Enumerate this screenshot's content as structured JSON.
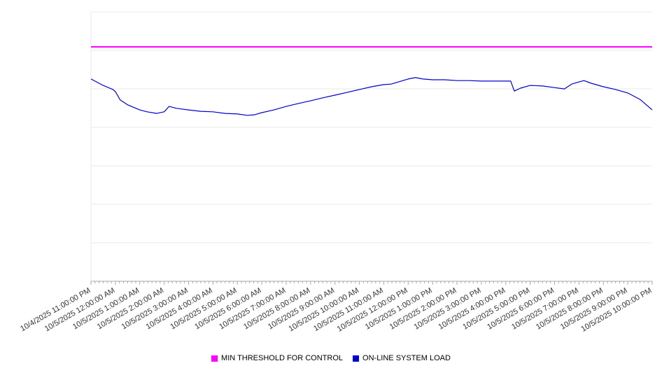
{
  "chart_data": {
    "type": "line",
    "title": "",
    "xlabel": "",
    "ylabel": "",
    "grid": true,
    "h_gridline_count": 8,
    "legend_position": "bottom",
    "ylim": [
      0,
      100
    ],
    "y_axis_labels": [],
    "x_axis": {
      "labels": [
        "10/4/2025 11:00:00 PM",
        "10/5/2025 12:00:00 AM",
        "10/5/2025 1:00:00 AM",
        "10/5/2025 2:00:00 AM",
        "10/5/2025 3:00:00 AM",
        "10/5/2025 4:00:00 AM",
        "10/5/2025 5:00:00 AM",
        "10/5/2025 6:00:00 AM",
        "10/5/2025 7:00:00 AM",
        "10/5/2025 8:00:00 AM",
        "10/5/2025 9:00:00 AM",
        "10/5/2025 10:00:00 AM",
        "10/5/2025 11:00:00 AM",
        "10/5/2025 12:00:00 PM",
        "10/5/2025 1:00:00 PM",
        "10/5/2025 2:00:00 PM",
        "10/5/2025 3:00:00 PM",
        "10/5/2025 4:00:00 PM",
        "10/5/2025 5:00:00 PM",
        "10/5/2025 6:00:00 PM",
        "10/5/2025 7:00:00 PM",
        "10/5/2025 8:00:00 PM",
        "10/5/2025 9:00:00 PM",
        "10/5/2025 10:00:00 PM"
      ],
      "minor_ticks_per_hour": 6,
      "label_rotation_deg": -30
    },
    "series": [
      {
        "name": "MIN THRESHOLD FOR CONTROL",
        "color": "#ff00ff",
        "style": "horizontal-line",
        "value": 87
      },
      {
        "name": "ON-LINE SYSTEM LOAD",
        "color": "#0000cd",
        "style": "line",
        "points": [
          [
            0,
            75.1
          ],
          [
            0.5,
            72.7
          ],
          [
            0.9,
            71.2
          ],
          [
            1,
            70.4
          ],
          [
            1.2,
            67.3
          ],
          [
            1.5,
            65.5
          ],
          [
            2,
            63.6
          ],
          [
            2.3,
            62.9
          ],
          [
            2.7,
            62.3
          ],
          [
            3,
            62.9
          ],
          [
            3.2,
            64.9
          ],
          [
            3.5,
            64.2
          ],
          [
            4,
            63.6
          ],
          [
            4.5,
            63.1
          ],
          [
            5,
            62.9
          ],
          [
            5.5,
            62.3
          ],
          [
            6,
            62.1
          ],
          [
            6.4,
            61.6
          ],
          [
            6.7,
            61.8
          ],
          [
            7,
            62.6
          ],
          [
            7.5,
            63.6
          ],
          [
            8,
            64.9
          ],
          [
            8.5,
            66.0
          ],
          [
            9,
            67.0
          ],
          [
            9.5,
            68.1
          ],
          [
            10,
            69.1
          ],
          [
            10.5,
            70.1
          ],
          [
            11,
            71.2
          ],
          [
            11.5,
            72.2
          ],
          [
            12,
            73.0
          ],
          [
            12.3,
            73.2
          ],
          [
            12.6,
            74.0
          ],
          [
            13,
            75.1
          ],
          [
            13.3,
            75.6
          ],
          [
            13.6,
            75.1
          ],
          [
            14,
            74.8
          ],
          [
            14.5,
            74.8
          ],
          [
            15,
            74.5
          ],
          [
            15.5,
            74.5
          ],
          [
            16,
            74.3
          ],
          [
            16.5,
            74.3
          ],
          [
            17,
            74.3
          ],
          [
            17.2,
            74.3
          ],
          [
            17.35,
            70.6
          ],
          [
            17.6,
            71.7
          ],
          [
            18,
            72.7
          ],
          [
            18.5,
            72.5
          ],
          [
            19,
            71.9
          ],
          [
            19.4,
            71.4
          ],
          [
            19.7,
            73.2
          ],
          [
            20,
            74.0
          ],
          [
            20.2,
            74.5
          ],
          [
            20.5,
            73.5
          ],
          [
            21,
            72.2
          ],
          [
            21.5,
            71.2
          ],
          [
            22,
            69.9
          ],
          [
            22.5,
            67.5
          ],
          [
            23,
            63.6
          ]
        ]
      }
    ]
  },
  "legend": {
    "items": [
      {
        "label": "MIN THRESHOLD FOR CONTROL",
        "color": "#ff00ff"
      },
      {
        "label": "ON-LINE SYSTEM LOAD",
        "color": "#0000cd"
      }
    ]
  },
  "colors": {
    "gridline": "#e9e9e9",
    "axis": "#aaaaaa",
    "tick": "#aaaaaa",
    "axis_label_text": "#333333"
  }
}
